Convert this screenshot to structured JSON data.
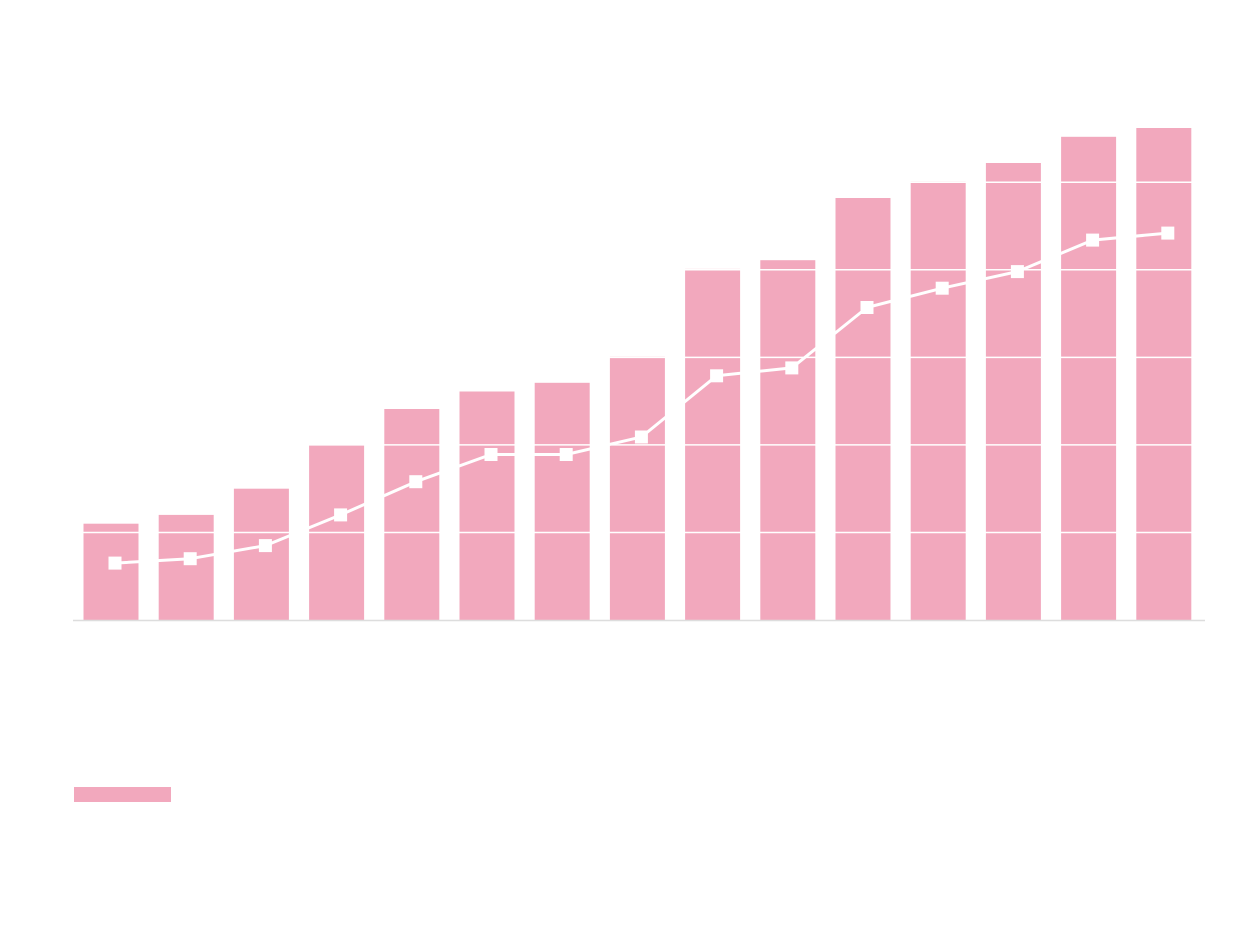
{
  "chart_data": {
    "type": "bar",
    "title": "",
    "xlabel": "",
    "ylabel": "",
    "categories": [
      "",
      "",
      "",
      "",
      "",
      "",
      "",
      "",
      "",
      "",
      "",
      "",
      "",
      "",
      ""
    ],
    "ylim": [
      0,
      5.62
    ],
    "grid": true,
    "legend": "bottom-left",
    "series": [
      {
        "type": "bar",
        "name": "",
        "color": "#f2a8bd",
        "values": [
          1.1,
          1.2,
          1.5,
          2.0,
          2.41,
          2.61,
          2.71,
          3.01,
          4.01,
          4.11,
          4.82,
          5.01,
          5.22,
          5.52,
          5.62
        ]
      },
      {
        "type": "line",
        "name": "",
        "color": "#ffffff",
        "marker": "square",
        "values": [
          0.65,
          0.7,
          0.85,
          1.2,
          1.58,
          1.89,
          1.89,
          2.09,
          2.79,
          2.88,
          3.57,
          3.79,
          3.98,
          4.34,
          4.42
        ]
      }
    ]
  }
}
